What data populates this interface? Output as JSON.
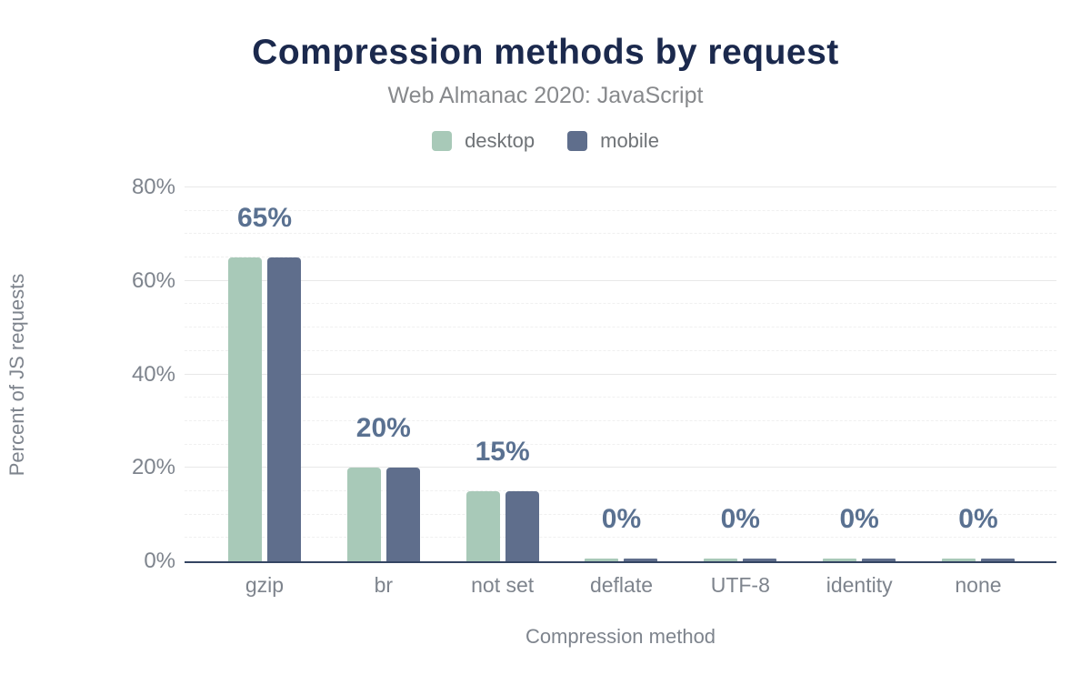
{
  "chart_data": {
    "type": "bar",
    "title": "Compression methods by request",
    "subtitle": "Web Almanac 2020: JavaScript",
    "xlabel": "Compression method",
    "ylabel": "Percent of JS requests",
    "categories": [
      "gzip",
      "br",
      "not set",
      "deflate",
      "UTF-8",
      "identity",
      "none"
    ],
    "series": [
      {
        "name": "desktop",
        "color": "#a8c9b8",
        "values": [
          65,
          20,
          15,
          0,
          0,
          0,
          0
        ]
      },
      {
        "name": "mobile",
        "color": "#5f6e8c",
        "values": [
          65,
          20,
          15,
          0,
          0,
          0,
          0
        ]
      }
    ],
    "value_labels": [
      "65%",
      "20%",
      "15%",
      "0%",
      "0%",
      "0%",
      "0%"
    ],
    "y_ticks": [
      {
        "value": 0,
        "label": "0%"
      },
      {
        "value": 20,
        "label": "20%"
      },
      {
        "value": 40,
        "label": "40%"
      },
      {
        "value": 60,
        "label": "60%"
      },
      {
        "value": 80,
        "label": "80%"
      }
    ],
    "ylim": [
      0,
      80
    ],
    "grid": "on",
    "legend_position": "top"
  },
  "colors": {
    "title": "#1b294d",
    "subtitle": "#87898c",
    "value_label": "#5a7191",
    "axis_text": "#7e848d",
    "legend_text": "#6f7377",
    "baseline": "#344562",
    "grid_major": "#e8e8e8",
    "grid_minor": "#f0f0f0",
    "background": "#ffffff"
  }
}
